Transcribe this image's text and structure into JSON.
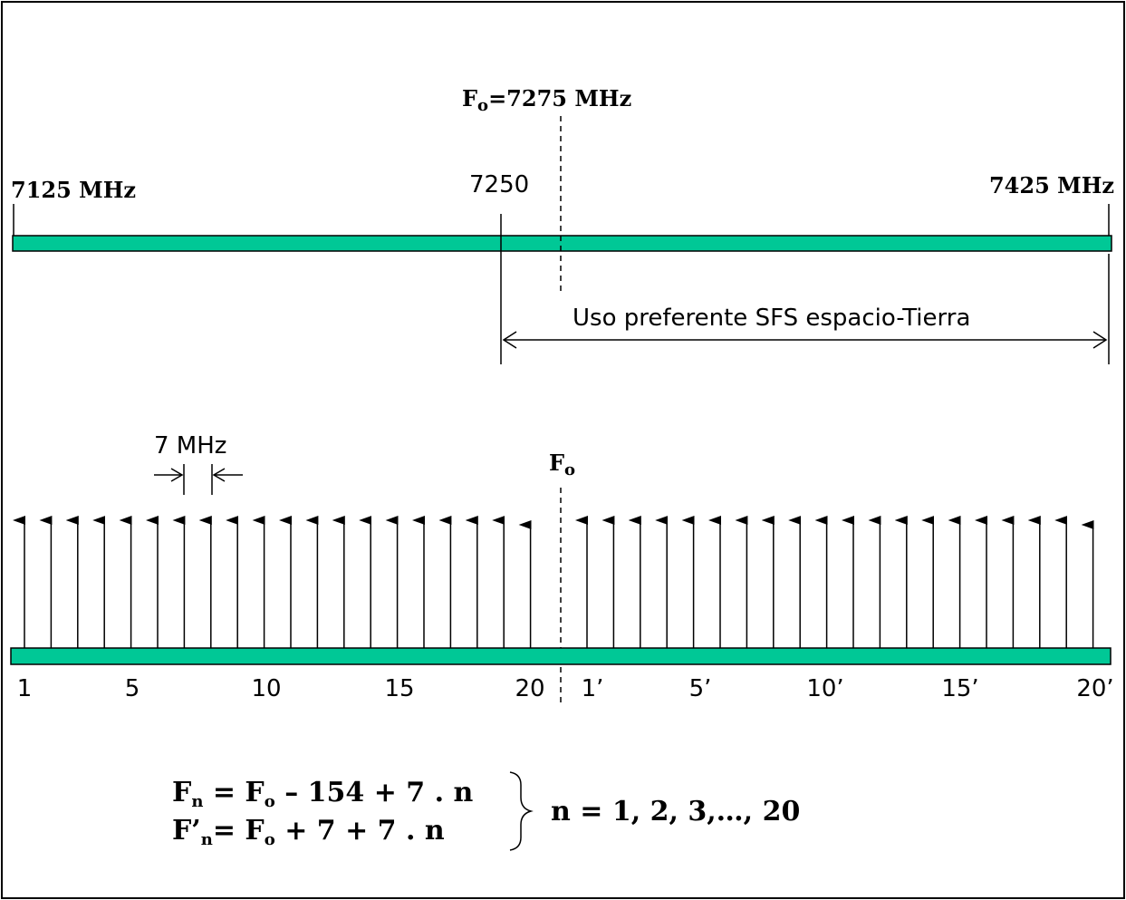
{
  "band": {
    "start_label": "7125  MHz",
    "end_label": "7425 MHz",
    "mid_label": "7250",
    "center_prefix": "F",
    "center_sub": "o",
    "center_suffix": "=7275 MHz",
    "preferential_label": "Uso preferente SFS espacio-Tierra",
    "bar_color": "#00c896"
  },
  "spacing_label": "7 MHz",
  "center_marker": {
    "prefix": "F",
    "sub": "o"
  },
  "channels": {
    "lower": [
      1,
      2,
      3,
      4,
      5,
      6,
      7,
      8,
      9,
      10,
      11,
      12,
      13,
      14,
      15,
      16,
      17,
      18,
      19,
      20
    ],
    "upper": [
      1,
      2,
      3,
      4,
      5,
      6,
      7,
      8,
      9,
      10,
      11,
      12,
      13,
      14,
      15,
      16,
      17,
      18,
      19,
      20
    ]
  },
  "channel_labels": {
    "lower": [
      "1",
      "5",
      "10",
      "15",
      "20"
    ],
    "upper": [
      "1’",
      "5’",
      "10’",
      "15’",
      "20’"
    ]
  },
  "formulas": {
    "line1": {
      "lhs": "F",
      "lhs_sub": "n",
      "mid": " = F",
      "mid_sub": "o",
      "rhs": " – 154 + 7 . n"
    },
    "line2": {
      "lhs": "F’",
      "lhs_sub": "n",
      "mid": "= F",
      "mid_sub": "o",
      "rhs": " + 7 + 7 . n"
    },
    "range": "n = 1, 2, 3,…, 20"
  }
}
